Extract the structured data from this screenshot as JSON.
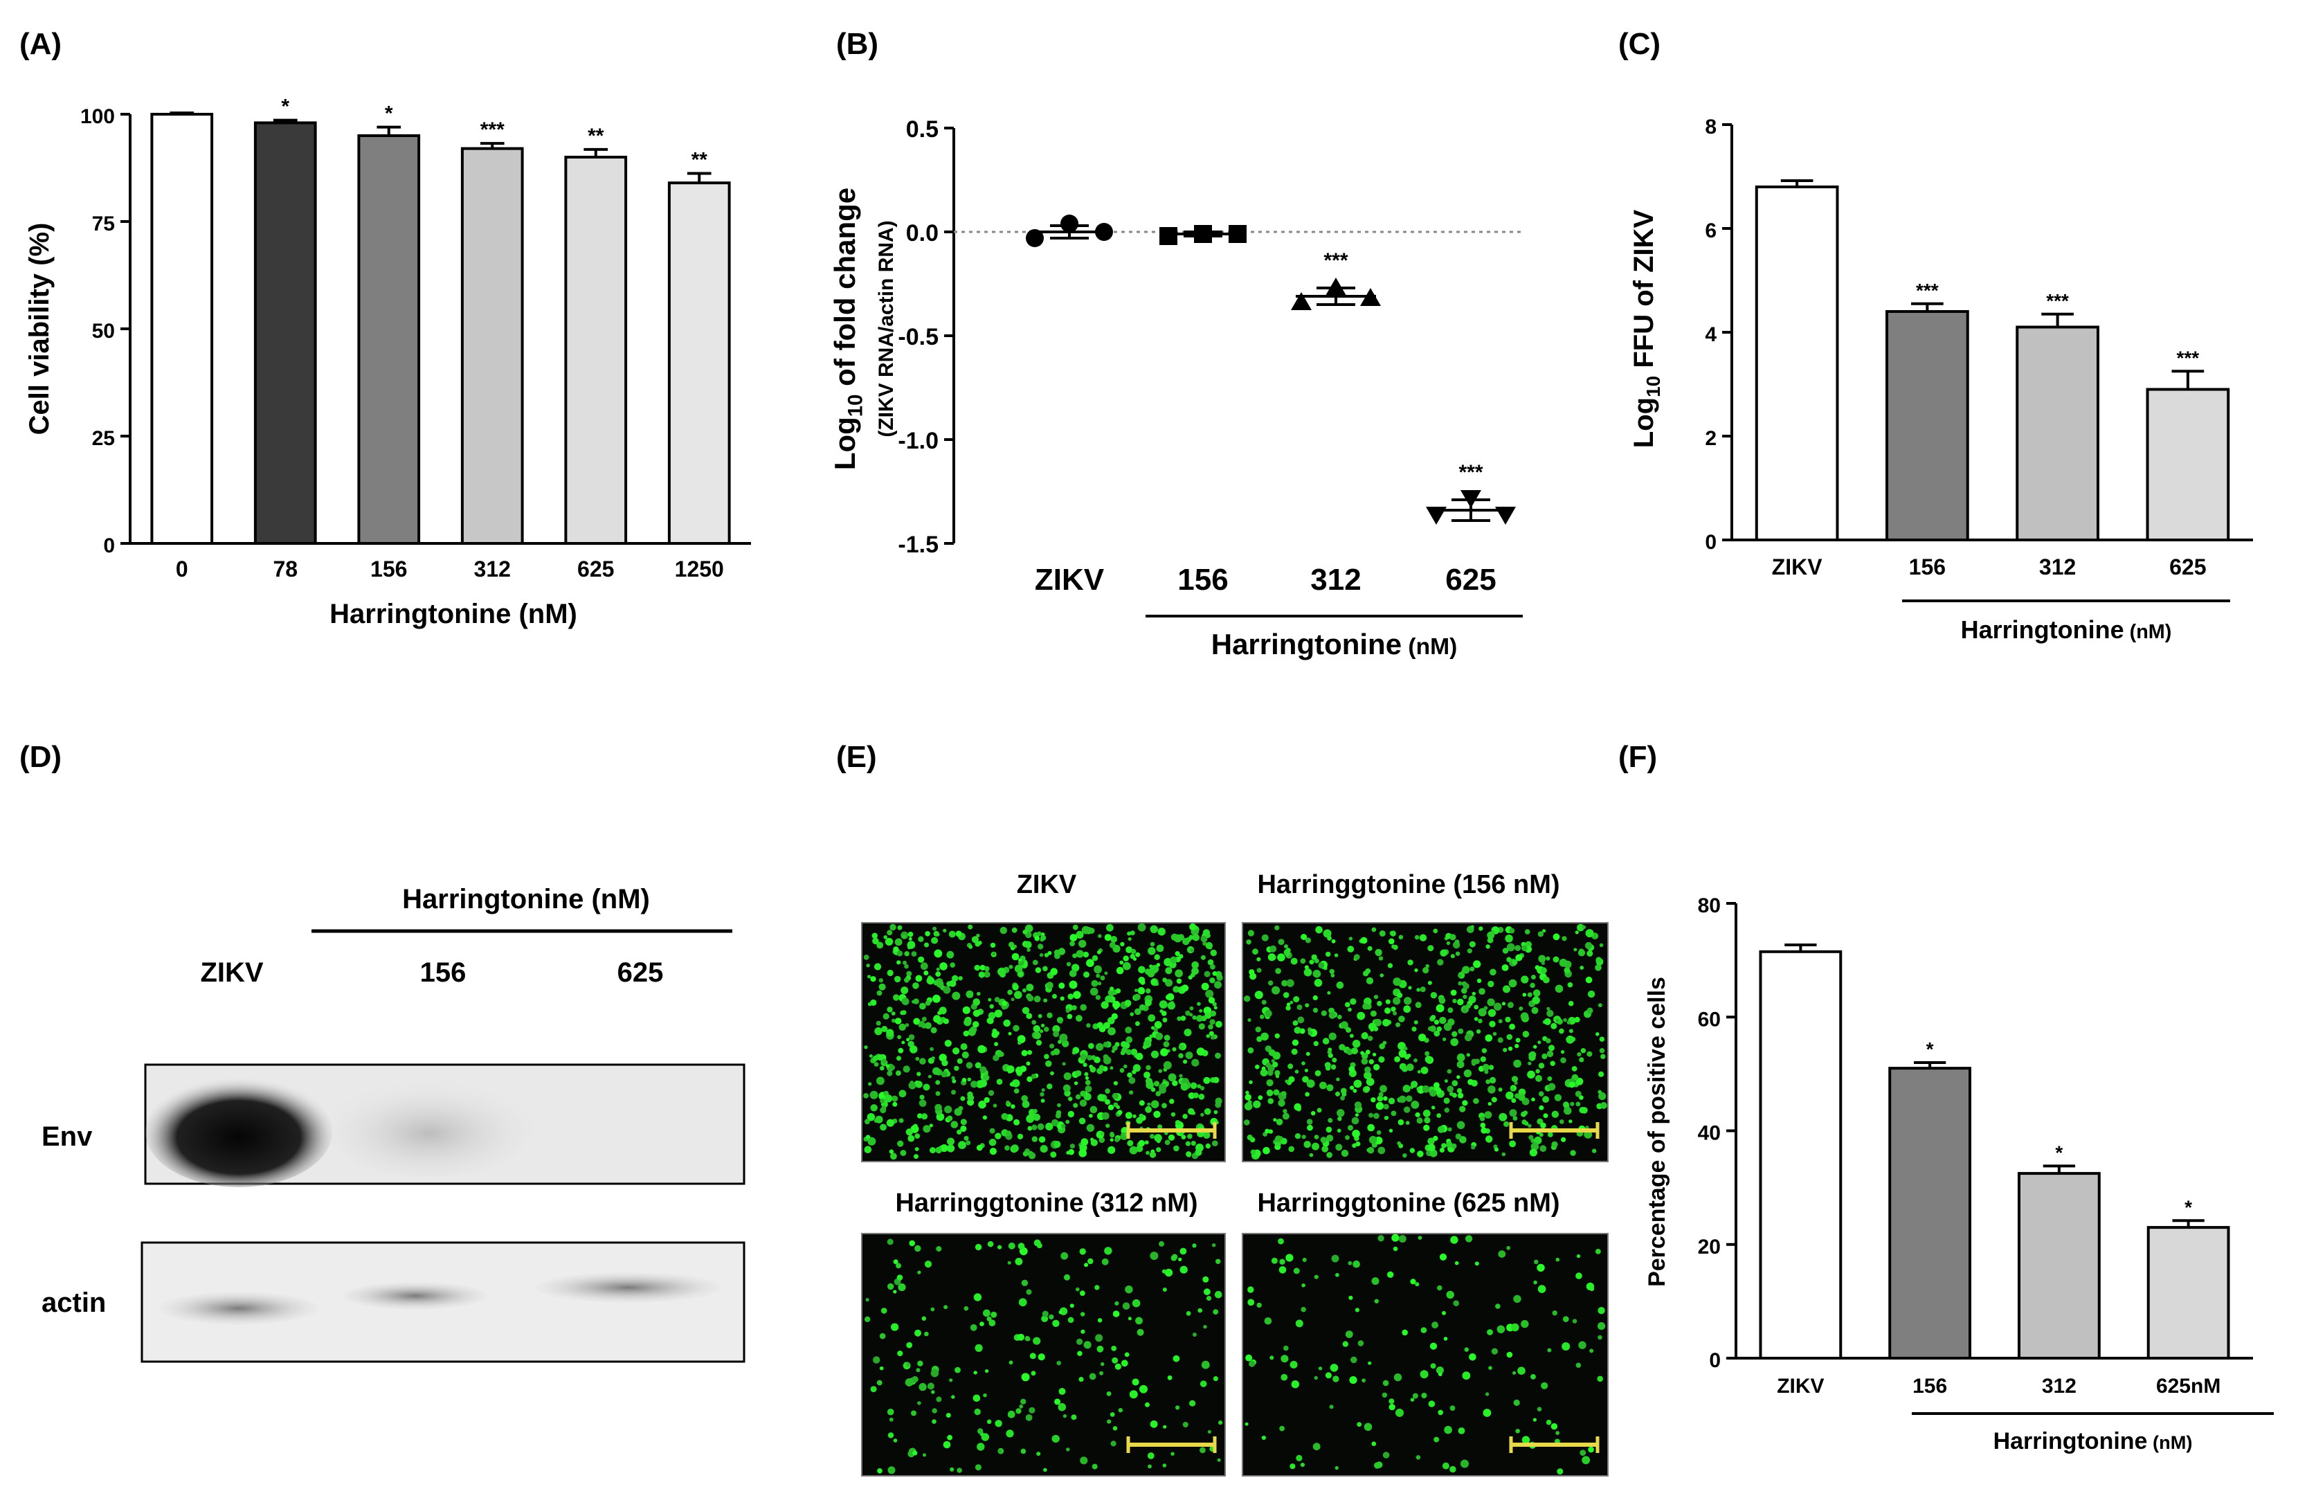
{
  "panels": {
    "A": "(A)",
    "B": "(B)",
    "C": "(C)",
    "D": "(D)",
    "E": "(E)",
    "F": "(F)"
  },
  "chart_data": [
    {
      "id": "A",
      "type": "bar",
      "ylabel": "Cell viability (%)",
      "xlabel": "Harringtonine (nM)",
      "ylim": [
        0,
        100
      ],
      "yticks": [
        0,
        25,
        50,
        75,
        100
      ],
      "categories": [
        "0",
        "78",
        "156",
        "312",
        "625",
        "1250"
      ],
      "values": [
        100,
        98,
        95,
        92,
        90,
        84
      ],
      "errors": [
        0.3,
        0.6,
        2.0,
        1.2,
        1.8,
        2.2
      ],
      "annotations": [
        "",
        "*",
        "*",
        "***",
        "**",
        "**"
      ],
      "colors": [
        "#ffffff",
        "#3a3a3a",
        "#7f7f7f",
        "#c7c7c7",
        "#dedede",
        "#e6e6e6"
      ]
    },
    {
      "id": "B",
      "type": "scatter",
      "ylabel_main": "Log",
      "ylabel_sub": "10",
      "ylabel_rest": " of fold change",
      "ylabel2": "(ZIKV RNA/actin RNA)",
      "ylim": [
        -1.5,
        0.5
      ],
      "yticks": [
        "0.5",
        "0.0",
        "-0.5",
        "-1.0",
        "-1.5"
      ],
      "categories": [
        "ZIKV",
        "156",
        "312",
        "625"
      ],
      "group_label": "Harringtonine",
      "group_unit": " (nM)",
      "means": [
        0.0,
        -0.01,
        -0.31,
        -1.34
      ],
      "errors": [
        0.03,
        0.01,
        0.04,
        0.05
      ],
      "points": [
        [
          -0.03,
          0.04,
          0.0
        ],
        [
          -0.02,
          -0.01,
          -0.01
        ],
        [
          -0.34,
          -0.27,
          -0.32
        ],
        [
          -1.36,
          -1.28,
          -1.36
        ]
      ],
      "markers": [
        "circle",
        "square",
        "triangle-up",
        "triangle-down"
      ],
      "annotations": [
        "",
        "",
        "***",
        "***"
      ]
    },
    {
      "id": "C",
      "type": "bar",
      "ylabel_main": "Log",
      "ylabel_sub": "10",
      "ylabel_rest": " FFU of ZIKV",
      "ylim": [
        0,
        8
      ],
      "yticks": [
        0,
        2,
        4,
        6,
        8
      ],
      "categories": [
        "ZIKV",
        "156",
        "312",
        "625"
      ],
      "values": [
        6.8,
        4.4,
        4.1,
        2.9
      ],
      "errors": [
        0.12,
        0.15,
        0.25,
        0.35
      ],
      "annotations": [
        "",
        "***",
        "***",
        "***"
      ],
      "group_label": "Harringtonine",
      "group_unit": " (nM)",
      "colors": [
        "#ffffff",
        "#7f7f7f",
        "#c0c0c0",
        "#dadada"
      ]
    },
    {
      "id": "F",
      "type": "bar",
      "ylabel": "Percentage of positive cells",
      "ylim": [
        0,
        80
      ],
      "yticks": [
        0,
        20,
        40,
        60,
        80
      ],
      "categories": [
        "ZIKV",
        "156",
        "312",
        "625nM"
      ],
      "values": [
        71.5,
        51,
        32.5,
        23
      ],
      "errors": [
        1.2,
        1.0,
        1.3,
        1.2
      ],
      "annotations": [
        "",
        "*",
        "*",
        "*"
      ],
      "group_label": "Harringtonine",
      "group_unit": " (nM)",
      "colors": [
        "#ffffff",
        "#7f7f7f",
        "#c0c0c0",
        "#d8d8d8"
      ]
    }
  ],
  "western_blot": {
    "header": "Harringtonine (nM)",
    "lanes": [
      "ZIKV",
      "156",
      "625"
    ],
    "rows": [
      "Env",
      "actin"
    ]
  },
  "microscopy": {
    "titles": [
      "ZIKV",
      "Harringgtonine (156 nM)",
      "Harringgtonine (312 nM)",
      "Harringgtonine (625 nM)"
    ],
    "density": [
      1.0,
      0.8,
      0.25,
      0.18
    ]
  }
}
